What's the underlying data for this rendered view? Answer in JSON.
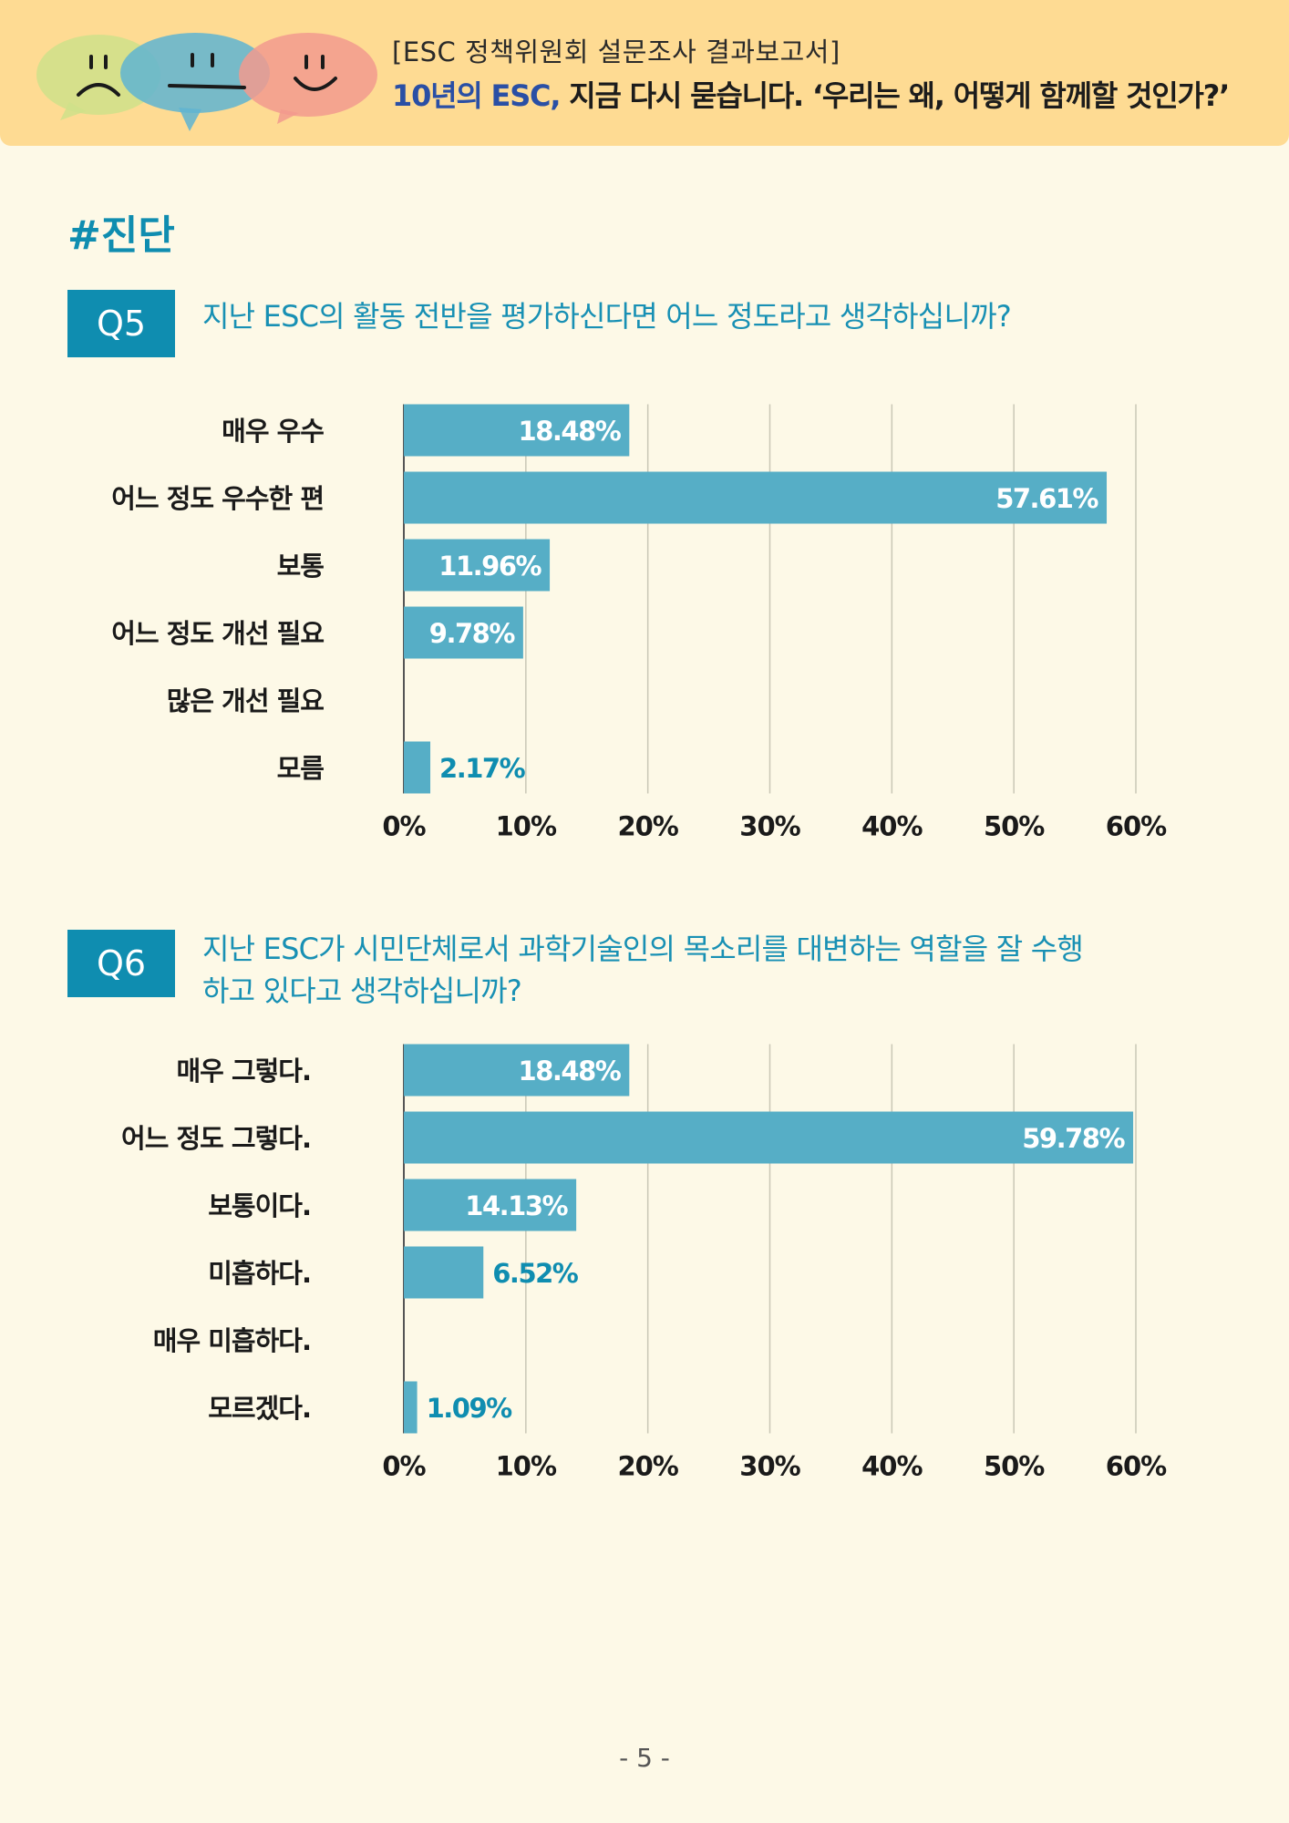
{
  "header": {
    "subtitle": "[ESC 정책위원회 설문조사 결과보고서]",
    "title_accent": "10년의 ESC,",
    "title_rest": " 지금 다시 묻습니다. ‘우리는 왜, 어떻게 함께할 것인가?’"
  },
  "section_title": "#진단",
  "questions": [
    {
      "badge": "Q5",
      "lines": [
        "지난 ESC의 활동 전반을 평가하신다면 어느 정도라고 생각하십니까?"
      ]
    },
    {
      "badge": "Q6",
      "lines": [
        "지난 ESC가 시민단체로서 과학기술인의 목소리를 대변하는 역할을 잘 수행",
        "하고 있다고 생각하십니까?"
      ]
    }
  ],
  "colors": {
    "bar": "#56aec6",
    "accent": "#0f8db0",
    "header_bg": "#fedb93",
    "page_bg": "#fdf9e7"
  },
  "chart_data": [
    {
      "type": "bar",
      "orientation": "horizontal",
      "title": "Q5",
      "categories": [
        "매우 우수",
        "어느 정도 우수한 편",
        "보통",
        "어느 정도 개선 필요",
        "많은 개선 필요",
        "모름"
      ],
      "values": [
        18.48,
        57.61,
        11.96,
        9.78,
        0,
        2.17
      ],
      "labels": [
        "18.48%",
        "57.61%",
        "11.96%",
        "9.78%",
        "",
        "2.17%"
      ],
      "xlim": [
        0,
        60
      ],
      "ticks": [
        "0%",
        "10%",
        "20%",
        "30%",
        "40%",
        "50%",
        "60%"
      ],
      "grid": true
    },
    {
      "type": "bar",
      "orientation": "horizontal",
      "title": "Q6",
      "categories": [
        "매우 그렇다.",
        "어느 정도 그렇다.",
        "보통이다.",
        "미흡하다.",
        "매우 미흡하다.",
        "모르겠다."
      ],
      "values": [
        18.48,
        59.78,
        14.13,
        6.52,
        0,
        1.09
      ],
      "labels": [
        "18.48%",
        "59.78%",
        "14.13%",
        "6.52%",
        "",
        "1.09%"
      ],
      "xlim": [
        0,
        60
      ],
      "ticks": [
        "0%",
        "10%",
        "20%",
        "30%",
        "40%",
        "50%",
        "60%"
      ],
      "grid": true
    }
  ],
  "page_number": "- 5 -"
}
